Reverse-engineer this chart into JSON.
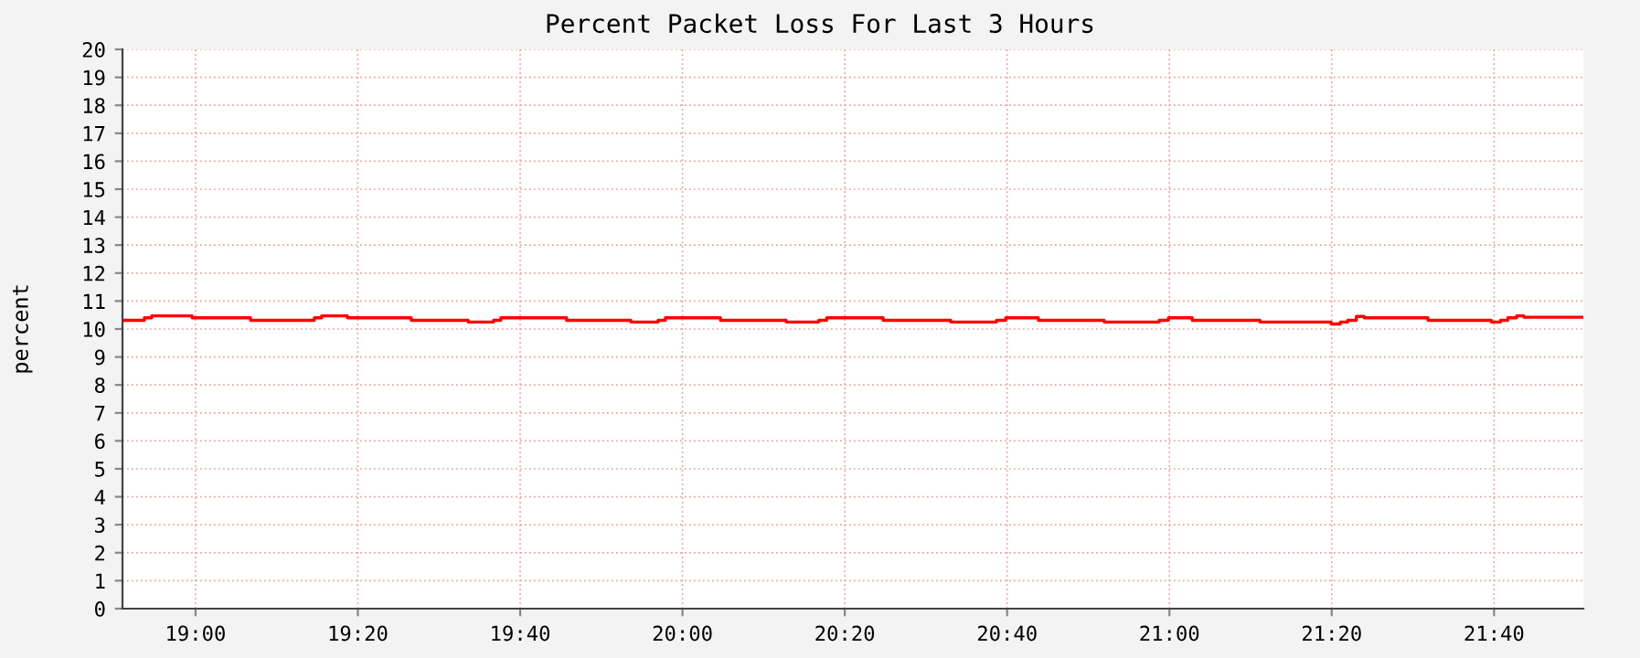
{
  "chart_data": {
    "type": "step",
    "title": "Percent Packet Loss For Last 3 Hours",
    "ylabel": "percent",
    "x": [
      18.85,
      18.895,
      18.91,
      18.993,
      19.113,
      19.244,
      19.259,
      19.312,
      19.443,
      19.56,
      19.612,
      19.627,
      19.762,
      19.894,
      19.95,
      19.965,
      20.078,
      20.213,
      20.28,
      20.296,
      20.412,
      20.551,
      20.645,
      20.664,
      20.731,
      20.866,
      20.979,
      20.998,
      21.047,
      21.186,
      21.332,
      21.351,
      21.366,
      21.384,
      21.4,
      21.531,
      21.661,
      21.68,
      21.695,
      21.713,
      21.728,
      21.85
    ],
    "series": [
      {
        "color": "#ff0000",
        "values": [
          10.31,
          10.4,
          10.47,
          10.4,
          10.31,
          10.4,
          10.47,
          10.4,
          10.31,
          10.25,
          10.31,
          10.4,
          10.31,
          10.25,
          10.31,
          10.4,
          10.31,
          10.25,
          10.31,
          10.4,
          10.31,
          10.25,
          10.31,
          10.4,
          10.31,
          10.25,
          10.31,
          10.4,
          10.31,
          10.25,
          10.18,
          10.25,
          10.31,
          10.45,
          10.4,
          10.31,
          10.25,
          10.31,
          10.4,
          10.47,
          10.42,
          10.42
        ]
      }
    ],
    "xlim": [
      18.85,
      21.85
    ],
    "xticks": [
      {
        "value": 19.0,
        "label": "19:00"
      },
      {
        "value": 19.3333,
        "label": "19:20"
      },
      {
        "value": 19.6667,
        "label": "19:40"
      },
      {
        "value": 20.0,
        "label": "20:00"
      },
      {
        "value": 20.3333,
        "label": "20:20"
      },
      {
        "value": 20.6667,
        "label": "20:40"
      },
      {
        "value": 21.0,
        "label": "21:00"
      },
      {
        "value": 21.3333,
        "label": "21:20"
      },
      {
        "value": 21.6667,
        "label": "21:40"
      }
    ],
    "ylim": [
      0,
      20
    ],
    "yticks": [
      0,
      1,
      2,
      3,
      4,
      5,
      6,
      7,
      8,
      9,
      10,
      11,
      12,
      13,
      14,
      15,
      16,
      17,
      18,
      19,
      20
    ],
    "grid": true,
    "legend": false
  }
}
